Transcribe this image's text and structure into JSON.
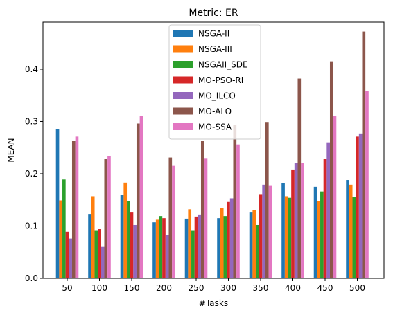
{
  "chart_data": {
    "type": "bar",
    "title": "Metric: ER",
    "xlabel": "#Tasks",
    "ylabel": "MEAN",
    "categories": [
      "50",
      "100",
      "150",
      "200",
      "250",
      "300",
      "350",
      "400",
      "450",
      "500"
    ],
    "ylim": [
      0,
      0.49
    ],
    "yticks": [
      "0.0",
      "0.1",
      "0.2",
      "0.3",
      "0.4"
    ],
    "legend_position": "upper center",
    "grid": false,
    "series": [
      {
        "name": "NSGA-II",
        "color": "#1f77b4",
        "values": [
          0.285,
          0.123,
          0.16,
          0.107,
          0.114,
          0.115,
          0.127,
          0.182,
          0.175,
          0.188
        ]
      },
      {
        "name": "NSGA-III",
        "color": "#ff7f0e",
        "values": [
          0.149,
          0.157,
          0.183,
          0.112,
          0.132,
          0.134,
          0.131,
          0.157,
          0.148,
          0.179
        ]
      },
      {
        "name": "NSGAII_SDE",
        "color": "#2ca02c",
        "values": [
          0.189,
          0.092,
          0.148,
          0.119,
          0.092,
          0.119,
          0.102,
          0.154,
          0.166,
          0.155
        ]
      },
      {
        "name": "MO-PSO-RI",
        "color": "#d62728",
        "values": [
          0.089,
          0.094,
          0.127,
          0.115,
          0.118,
          0.146,
          0.161,
          0.208,
          0.229,
          0.271
        ]
      },
      {
        "name": "MO_ILCO",
        "color": "#9467bd",
        "values": [
          0.076,
          0.06,
          0.102,
          0.083,
          0.122,
          0.153,
          0.179,
          0.22,
          0.26,
          0.277
        ]
      },
      {
        "name": "MO-ALO",
        "color": "#8c564b",
        "values": [
          0.263,
          0.228,
          0.296,
          0.231,
          0.263,
          0.294,
          0.299,
          0.382,
          0.415,
          0.472
        ]
      },
      {
        "name": "MO-SSA",
        "color": "#e377c2",
        "values": [
          0.271,
          0.234,
          0.31,
          0.215,
          0.23,
          0.256,
          0.178,
          0.22,
          0.311,
          0.358
        ]
      }
    ]
  }
}
